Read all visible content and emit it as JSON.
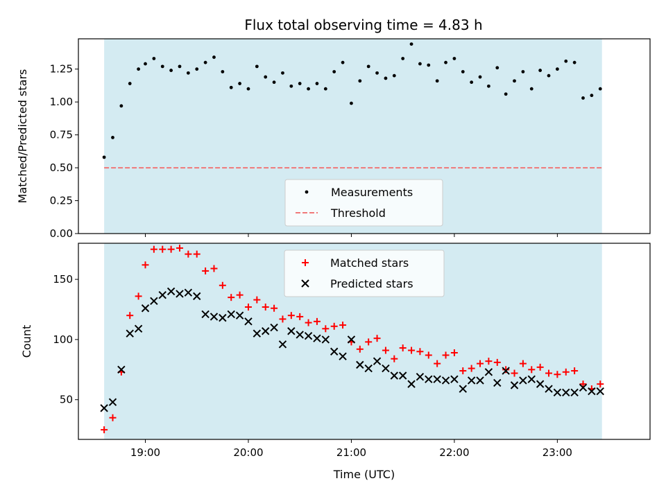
{
  "chart_data": [
    {
      "type": "scatter",
      "title": "Flux total observing time = 4.83 h",
      "xlabel": "",
      "ylabel": "Matched/Predicted stars",
      "ylim": [
        0,
        1.48
      ],
      "yticks": [
        "0.00",
        "0.25",
        "0.50",
        "0.75",
        "1.00",
        "1.25"
      ],
      "ytick_values": [
        0,
        0.25,
        0.5,
        0.75,
        1.0,
        1.25
      ],
      "grid": false,
      "legend": "lower-center",
      "shaded_interval": [
        "18:36",
        "23:26"
      ],
      "threshold": 0.5,
      "series": [
        {
          "name": "Measurements",
          "marker": "dot",
          "color": "#000000",
          "x": [
            "18:36",
            "18:41",
            "18:46",
            "18:51",
            "18:56",
            "19:00",
            "19:05",
            "19:10",
            "19:15",
            "19:20",
            "19:25",
            "19:30",
            "19:35",
            "19:40",
            "19:45",
            "19:50",
            "19:55",
            "20:00",
            "20:05",
            "20:10",
            "20:15",
            "20:20",
            "20:25",
            "20:30",
            "20:35",
            "20:40",
            "20:45",
            "20:50",
            "20:55",
            "21:00",
            "21:05",
            "21:10",
            "21:15",
            "21:20",
            "21:25",
            "21:30",
            "21:35",
            "21:40",
            "21:45",
            "21:50",
            "21:55",
            "22:00",
            "22:05",
            "22:10",
            "22:15",
            "22:20",
            "22:25",
            "22:30",
            "22:35",
            "22:40",
            "22:45",
            "22:50",
            "22:55",
            "23:00",
            "23:05",
            "23:10",
            "23:15",
            "23:20",
            "23:25"
          ],
          "values": [
            0.58,
            0.73,
            0.97,
            1.14,
            1.25,
            1.29,
            1.33,
            1.27,
            1.24,
            1.27,
            1.22,
            1.25,
            1.3,
            1.34,
            1.23,
            1.11,
            1.14,
            1.1,
            1.27,
            1.19,
            1.15,
            1.22,
            1.12,
            1.14,
            1.1,
            1.14,
            1.1,
            1.23,
            1.3,
            0.99,
            1.16,
            1.27,
            1.22,
            1.18,
            1.2,
            1.33,
            1.44,
            1.29,
            1.28,
            1.16,
            1.3,
            1.33,
            1.23,
            1.15,
            1.19,
            1.12,
            1.26,
            1.06,
            1.16,
            1.23,
            1.1,
            1.24,
            1.2,
            1.25,
            1.31,
            1.3,
            1.03,
            1.05,
            1.1
          ]
        },
        {
          "name": "Threshold",
          "marker": "dashed-line",
          "color": "#f07878",
          "values": [
            0.5
          ]
        }
      ]
    },
    {
      "type": "scatter",
      "title": "",
      "xlabel": "Time (UTC)",
      "ylabel": "Count",
      "ylim": [
        17,
        180
      ],
      "yticks": [
        "50",
        "100",
        "150"
      ],
      "ytick_values": [
        50,
        100,
        150
      ],
      "xticks": [
        "19:00",
        "20:00",
        "21:00",
        "22:00",
        "23:00"
      ],
      "xtick_values": [
        "19:00",
        "20:00",
        "21:00",
        "22:00",
        "23:00"
      ],
      "xlim": [
        "18:21",
        "23:54"
      ],
      "grid": false,
      "legend": "upper-center",
      "shaded_interval": [
        "18:36",
        "23:26"
      ],
      "series": [
        {
          "name": "Matched stars",
          "marker": "plus",
          "color": "#ff0000",
          "x": [
            "18:36",
            "18:41",
            "18:46",
            "18:51",
            "18:56",
            "19:00",
            "19:05",
            "19:10",
            "19:15",
            "19:20",
            "19:25",
            "19:30",
            "19:35",
            "19:40",
            "19:45",
            "19:50",
            "19:55",
            "20:00",
            "20:05",
            "20:10",
            "20:15",
            "20:20",
            "20:25",
            "20:30",
            "20:35",
            "20:40",
            "20:45",
            "20:50",
            "20:55",
            "21:00",
            "21:05",
            "21:10",
            "21:15",
            "21:20",
            "21:25",
            "21:30",
            "21:35",
            "21:40",
            "21:45",
            "21:50",
            "21:55",
            "22:00",
            "22:05",
            "22:10",
            "22:15",
            "22:20",
            "22:25",
            "22:30",
            "22:35",
            "22:40",
            "22:45",
            "22:50",
            "22:55",
            "23:00",
            "23:05",
            "23:10",
            "23:15",
            "23:20",
            "23:25"
          ],
          "values": [
            25,
            35,
            73,
            120,
            136,
            162,
            175,
            175,
            175,
            176,
            171,
            171,
            157,
            159,
            145,
            135,
            137,
            127,
            133,
            127,
            126,
            117,
            120,
            119,
            114,
            115,
            109,
            111,
            112,
            98,
            92,
            98,
            101,
            91,
            84,
            93,
            91,
            90,
            87,
            80,
            87,
            89,
            74,
            76,
            80,
            82,
            81,
            75,
            72,
            80,
            75,
            77,
            72,
            71,
            73,
            74,
            63,
            59,
            63
          ]
        },
        {
          "name": "Predicted stars",
          "marker": "x",
          "color": "#000000",
          "x": [
            "18:36",
            "18:41",
            "18:46",
            "18:51",
            "18:56",
            "19:00",
            "19:05",
            "19:10",
            "19:15",
            "19:20",
            "19:25",
            "19:30",
            "19:35",
            "19:40",
            "19:45",
            "19:50",
            "19:55",
            "20:00",
            "20:05",
            "20:10",
            "20:15",
            "20:20",
            "20:25",
            "20:30",
            "20:35",
            "20:40",
            "20:45",
            "20:50",
            "20:55",
            "21:00",
            "21:05",
            "21:10",
            "21:15",
            "21:20",
            "21:25",
            "21:30",
            "21:35",
            "21:40",
            "21:45",
            "21:50",
            "21:55",
            "22:00",
            "22:05",
            "22:10",
            "22:15",
            "22:20",
            "22:25",
            "22:30",
            "22:35",
            "22:40",
            "22:45",
            "22:50",
            "22:55",
            "23:00",
            "23:05",
            "23:10",
            "23:15",
            "23:20",
            "23:25"
          ],
          "values": [
            43,
            48,
            75,
            105,
            109,
            126,
            132,
            137,
            140,
            138,
            139,
            136,
            121,
            119,
            118,
            121,
            120,
            115,
            105,
            107,
            110,
            96,
            107,
            104,
            103,
            101,
            100,
            90,
            86,
            100,
            79,
            76,
            82,
            76,
            70,
            70,
            63,
            69,
            67,
            67,
            66,
            67,
            59,
            66,
            66,
            73,
            64,
            74,
            62,
            66,
            67,
            63,
            59,
            56,
            56,
            56,
            60,
            57,
            57
          ]
        }
      ]
    }
  ]
}
